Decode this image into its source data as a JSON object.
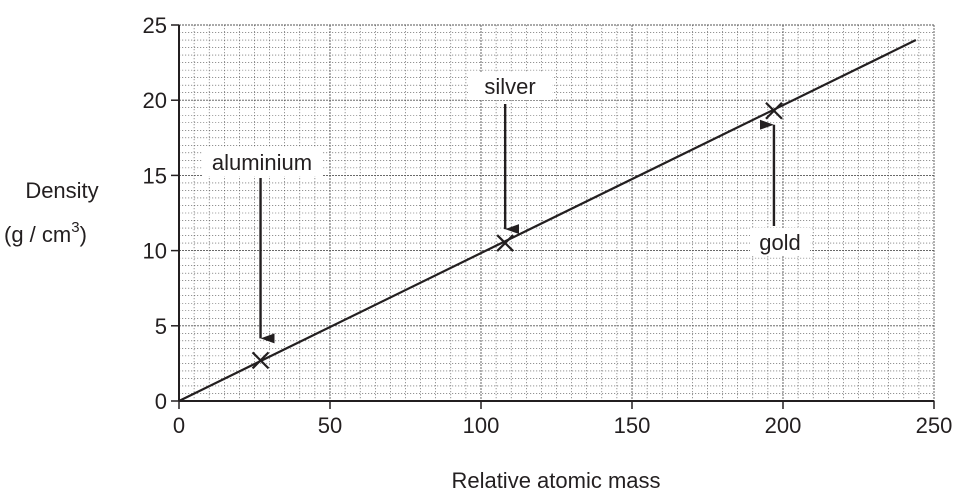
{
  "chart_data": {
    "type": "scatter",
    "xlabel": "Relative atomic mass",
    "ylabel": [
      "Density",
      "(g / cm",
      "3",
      ")"
    ],
    "xlim": [
      0,
      250
    ],
    "ylim": [
      0,
      25
    ],
    "x_ticks": [
      "0",
      "50",
      "100",
      "150",
      "200",
      "250"
    ],
    "y_ticks": [
      "0",
      "5",
      "10",
      "15",
      "20",
      "25"
    ],
    "grid": true,
    "points": [
      {
        "name": "aluminium",
        "x": 27,
        "y": 2.7
      },
      {
        "name": "silver",
        "x": 108,
        "y": 10.5
      },
      {
        "name": "gold",
        "x": 197,
        "y": 19.3
      }
    ],
    "trend_line": {
      "x": [
        0,
        244
      ],
      "y": [
        0,
        24
      ]
    },
    "annotations": [
      {
        "text": "aluminium",
        "target": "aluminium"
      },
      {
        "text": "silver",
        "target": "silver"
      },
      {
        "text": "gold",
        "target": "gold"
      }
    ],
    "colors": {
      "ink": "#231f20",
      "grid": "#555555"
    }
  }
}
